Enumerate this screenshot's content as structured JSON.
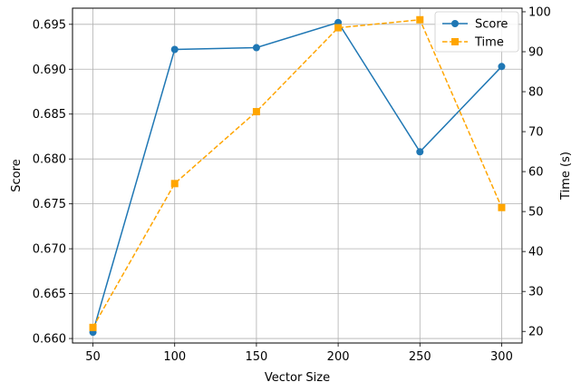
{
  "chart_data": {
    "type": "line",
    "title": "",
    "xlabel": "Vector Size",
    "ylabel": "Score",
    "y2label": "Time (s)",
    "x": [
      50,
      100,
      150,
      200,
      250,
      300
    ],
    "xlim": [
      37.5,
      312.5
    ],
    "ylim": [
      0.6595,
      0.6968
    ],
    "y2lim": [
      17.1,
      100.9
    ],
    "xticks": [
      "50",
      "100",
      "150",
      "200",
      "250",
      "300"
    ],
    "yticks": [
      "0.660",
      "0.665",
      "0.670",
      "0.675",
      "0.680",
      "0.685",
      "0.690",
      "0.695"
    ],
    "y2ticks": [
      "20",
      "30",
      "40",
      "50",
      "60",
      "70",
      "80",
      "90",
      "100"
    ],
    "grid": true,
    "legend_position": "top-right",
    "series": [
      {
        "name": "Score",
        "axis": "left",
        "values": [
          0.6607,
          0.6922,
          0.6924,
          0.6952,
          0.6808,
          0.6903
        ],
        "color": "#1f77b4",
        "marker": "circle",
        "line_style": "solid"
      },
      {
        "name": "Time",
        "axis": "right",
        "values": [
          21,
          57,
          75,
          96,
          98,
          51
        ],
        "color": "#ffa500",
        "marker": "square",
        "line_style": "dashed"
      }
    ]
  }
}
